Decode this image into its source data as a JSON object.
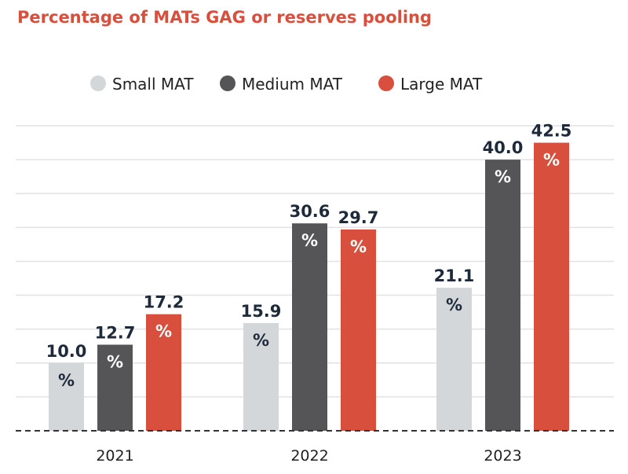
{
  "chart_data": {
    "type": "bar",
    "title": "Percentage of MATs GAG or reserves pooling",
    "categories": [
      "2021",
      "2022",
      "2023"
    ],
    "series": [
      {
        "name": "Small MAT",
        "values": [
          10.0,
          15.9,
          21.1
        ],
        "color": "#d4d7da"
      },
      {
        "name": "Medium MAT",
        "values": [
          12.7,
          30.6,
          40.0
        ],
        "color": "#555557"
      },
      {
        "name": "Large MAT",
        "values": [
          17.2,
          29.7,
          42.5
        ],
        "color": "#d94f3d"
      }
    ],
    "unit": "%",
    "ylim": [
      0,
      45
    ],
    "grid": true,
    "legend": "top",
    "title_color": "#d94f3d",
    "grid_color": "#e2e2e2",
    "axis_color": "#333333"
  }
}
